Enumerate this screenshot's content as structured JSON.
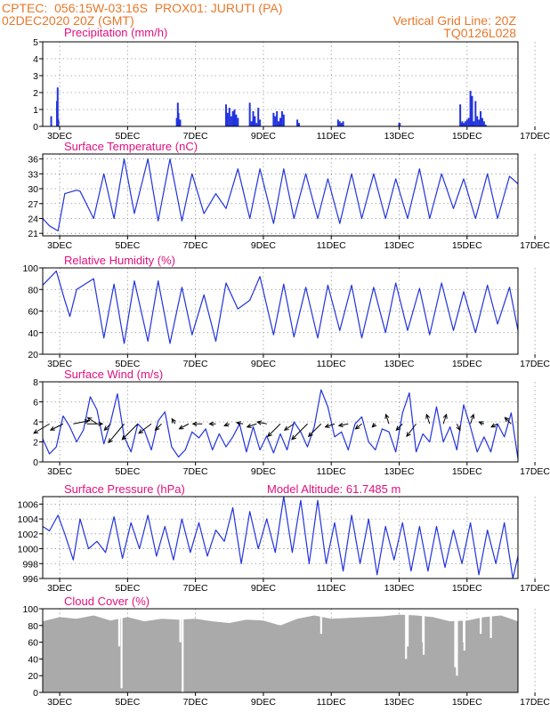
{
  "header": {
    "line1_left": "CPTEC:  056:15W-03:16S  PROX01: JURUTI (PA)",
    "line2_left": "02DEC2020 20Z (GMT)",
    "line2_right": "Vertical Grid Line: 20Z",
    "line3_right": "TQ0126L028"
  },
  "x_ticks": [
    "3DEC",
    "5DEC",
    "7DEC",
    "9DEC",
    "11DEC",
    "13DEC",
    "15DEC",
    "17DEC"
  ],
  "colors": {
    "line": "#2233dd",
    "title": "#e0107e",
    "header": "#e8782a",
    "cloud": "#aaaaaa",
    "arrow": "#000000"
  },
  "chart_data": [
    {
      "id": "precip",
      "type": "bar",
      "title": "Precipitation (mm/h)",
      "ylim": [
        0,
        5
      ],
      "yticks": [
        "0",
        "1",
        "2",
        "3",
        "4",
        "5"
      ],
      "x_unit": "days since 02DEC2020 20Z",
      "x": [
        0.25,
        0.42,
        0.44,
        0.46,
        3.95,
        3.98,
        4.0,
        4.02,
        4.05,
        5.4,
        5.45,
        5.5,
        5.55,
        5.6,
        5.65,
        5.7,
        5.75,
        6.1,
        6.15,
        6.2,
        6.25,
        6.3,
        6.35,
        6.4,
        6.8,
        6.85,
        6.9,
        6.95,
        7.0,
        7.05,
        7.1,
        7.5,
        7.55,
        8.7,
        8.75,
        8.8,
        8.85,
        10.5,
        10.52,
        12.3,
        12.33,
        12.36,
        12.4,
        12.45,
        12.5,
        12.55,
        12.6,
        12.65,
        12.7,
        12.75,
        12.8,
        12.85,
        12.9,
        12.95,
        13.0,
        13.05
      ],
      "values": [
        0.6,
        1.5,
        2.3,
        0.4,
        0.5,
        1.4,
        0.8,
        0.3,
        0.4,
        1.3,
        0.8,
        1.1,
        0.6,
        0.9,
        1.0,
        0.7,
        0.5,
        1.4,
        0.3,
        0.9,
        0.6,
        0.2,
        1.1,
        0.4,
        0.8,
        0.6,
        0.9,
        0.3,
        0.5,
        0.9,
        0.7,
        0.4,
        0.2,
        0.4,
        0.3,
        0.2,
        0.3,
        0.2,
        0.2,
        1.3,
        0.2,
        0.3,
        0.2,
        0.3,
        0.4,
        0.5,
        2.1,
        1.8,
        0.3,
        1.5,
        0.6,
        0.4,
        0.9,
        0.5,
        0.3,
        0.1
      ]
    },
    {
      "id": "temp",
      "type": "line",
      "title": "Surface Temperature (nC)",
      "ylim": [
        20.5,
        37
      ],
      "yticks": [
        "21",
        "24",
        "27",
        "30",
        "33",
        "36"
      ],
      "x_unit": "days since 02DEC2020 20Z",
      "x": [
        0,
        0.2,
        0.45,
        0.65,
        1.0,
        1.1,
        1.5,
        1.8,
        2.1,
        2.4,
        2.7,
        3.1,
        3.4,
        3.75,
        4.1,
        4.4,
        4.75,
        5.1,
        5.4,
        5.75,
        6.1,
        6.4,
        6.8,
        7.1,
        7.4,
        7.75,
        8.1,
        8.4,
        8.75,
        9.1,
        9.4,
        9.75,
        10.1,
        10.4,
        10.75,
        11.1,
        11.4,
        11.75,
        12.1,
        12.4,
        12.75,
        13.1,
        13.4,
        13.75,
        14
      ],
      "values": [
        24,
        22.5,
        21.5,
        29,
        29.7,
        29.5,
        24,
        33,
        24,
        36,
        25,
        36,
        23.5,
        36,
        23.5,
        33,
        25,
        29,
        26,
        34,
        24,
        34,
        23,
        34,
        24,
        33,
        24,
        32,
        23,
        33,
        24,
        33,
        24,
        32,
        24,
        34,
        24,
        33,
        26,
        32,
        24,
        33,
        24,
        32.5,
        31
      ]
    },
    {
      "id": "rh",
      "type": "line",
      "title": "Relative Humidity (%)",
      "ylim": [
        20,
        100
      ],
      "yticks": [
        "20",
        "40",
        "60",
        "80",
        "100"
      ],
      "x_unit": "days since 02DEC2020 20Z",
      "x": [
        0,
        0.4,
        0.65,
        0.8,
        1.0,
        1.5,
        1.8,
        2.1,
        2.4,
        2.7,
        3.1,
        3.4,
        3.75,
        4.1,
        4.4,
        4.75,
        5.1,
        5.4,
        5.75,
        6.1,
        6.4,
        6.8,
        7.1,
        7.4,
        7.75,
        8.1,
        8.4,
        8.75,
        9.1,
        9.4,
        9.75,
        10.1,
        10.4,
        10.75,
        11.1,
        11.4,
        11.75,
        12.1,
        12.4,
        12.75,
        13.1,
        13.4,
        13.75,
        14
      ],
      "values": [
        84,
        97,
        70,
        55,
        80,
        90,
        35,
        85,
        30,
        88,
        32,
        88,
        30,
        82,
        38,
        75,
        32,
        86,
        62,
        70,
        92,
        38,
        85,
        36,
        82,
        35,
        84,
        42,
        84,
        35,
        82,
        40,
        86,
        42,
        81,
        38,
        86,
        42,
        78,
        40,
        84,
        48,
        82,
        42
      ]
    },
    {
      "id": "wind",
      "type": "line",
      "title": "Surface Wind (m/s)",
      "ylim": [
        0,
        8
      ],
      "yticks": [
        "0",
        "2",
        "4",
        "6",
        "8"
      ],
      "x_unit": "days since 02DEC2020 20Z",
      "x": [
        0,
        0.2,
        0.4,
        0.6,
        0.8,
        1.0,
        1.2,
        1.4,
        1.6,
        1.8,
        2.0,
        2.2,
        2.4,
        2.6,
        2.8,
        3.0,
        3.2,
        3.4,
        3.6,
        3.8,
        4.0,
        4.2,
        4.4,
        4.6,
        4.8,
        5.0,
        5.2,
        5.4,
        5.6,
        5.8,
        6.0,
        6.2,
        6.4,
        6.6,
        6.8,
        7.0,
        7.2,
        7.4,
        7.6,
        7.8,
        8.0,
        8.2,
        8.4,
        8.6,
        8.8,
        9.0,
        9.2,
        9.4,
        9.6,
        9.8,
        10.0,
        10.2,
        10.4,
        10.6,
        10.8,
        11.0,
        11.2,
        11.4,
        11.6,
        11.8,
        12.0,
        12.2,
        12.4,
        12.6,
        12.8,
        13.0,
        13.2,
        13.4,
        13.6,
        13.8,
        14.0
      ],
      "values": [
        2.3,
        0.8,
        1.5,
        4.6,
        3.5,
        2.0,
        3.2,
        6.5,
        5.2,
        1.8,
        4.0,
        6.8,
        2.5,
        1.0,
        3.8,
        3.1,
        1.2,
        4.1,
        5.0,
        1.5,
        0.5,
        1.2,
        3.0,
        2.4,
        3.3,
        1.2,
        2.8,
        1.5,
        2.5,
        3.8,
        1.0,
        3.5,
        1.2,
        2.6,
        0.9,
        2.8,
        1.2,
        4.0,
        3.0,
        1.5,
        3.5,
        7.2,
        5.5,
        2.5,
        3.0,
        1.2,
        3.8,
        4.5,
        2.0,
        1.2,
        3.3,
        3.0,
        1.0,
        4.9,
        6.9,
        1.0,
        2.8,
        2.0,
        5.5,
        2.0,
        3.5,
        1.2,
        5.7,
        3.5,
        1.0,
        2.5,
        1.0,
        3.8,
        2.5,
        4.9,
        0.3
      ],
      "arrows": {
        "x": [
          0.2,
          0.6,
          0.9,
          1.3,
          1.6,
          2.0,
          2.4,
          2.8,
          3.2,
          3.5,
          3.9,
          4.3,
          4.7,
          5.1,
          5.5,
          5.9,
          6.3,
          6.6,
          7.0,
          7.4,
          7.8,
          8.2,
          8.6,
          9.0,
          9.4,
          9.8,
          10.2,
          10.6,
          11.0,
          11.4,
          11.8,
          12.2,
          12.6,
          13.0,
          13.4,
          13.8
        ],
        "u": [
          -2.5,
          -2.0,
          2.5,
          2.5,
          -1.5,
          -1.0,
          -2.5,
          -2.5,
          -2.0,
          -1.0,
          -0.5,
          -1.5,
          -1.5,
          -1.0,
          -0.8,
          -1.0,
          -1.5,
          -1.5,
          -2.0,
          -1.5,
          -2.5,
          -2.0,
          -1.5,
          -1.5,
          -1.0,
          -0.5,
          -0.5,
          -1.0,
          -1.5,
          -0.5,
          0.5,
          0.5,
          0.5,
          -0.8,
          -1.0,
          -1.0
        ],
        "v": [
          -1.5,
          -1.0,
          0.5,
          0.0,
          1.0,
          -1.0,
          -3.0,
          -2.5,
          -1.5,
          -1.0,
          0.8,
          -0.8,
          0.0,
          0.0,
          -0.3,
          0.2,
          -0.5,
          0.3,
          -2.0,
          -1.0,
          -2.5,
          -2.0,
          -0.5,
          -0.3,
          -0.8,
          -0.5,
          1.5,
          -1.0,
          -2.0,
          1.5,
          1.5,
          -1.0,
          1.5,
          0.3,
          -0.5,
          1.0
        ]
      }
    },
    {
      "id": "pres",
      "type": "line",
      "title": "Surface Pressure (hPa)",
      "annotation": "Model Altitude: 61.7485 m",
      "ylim": [
        996,
        1007
      ],
      "yticks": [
        "996",
        "998",
        "1000",
        "1002",
        "1004",
        "1006"
      ],
      "x_unit": "days since 02DEC2020 20Z",
      "x": [
        0,
        0.2,
        0.45,
        0.65,
        0.9,
        1.1,
        1.35,
        1.6,
        1.85,
        2.1,
        2.35,
        2.6,
        2.85,
        3.1,
        3.35,
        3.6,
        3.85,
        4.1,
        4.35,
        4.6,
        4.85,
        5.1,
        5.35,
        5.6,
        5.85,
        6.1,
        6.35,
        6.6,
        6.85,
        7.1,
        7.35,
        7.6,
        7.85,
        8.1,
        8.35,
        8.6,
        8.85,
        9.1,
        9.35,
        9.6,
        9.85,
        10.1,
        10.35,
        10.6,
        10.85,
        11.1,
        11.35,
        11.6,
        11.85,
        12.1,
        12.35,
        12.6,
        12.85,
        13.1,
        13.35,
        13.6,
        13.85,
        14
      ],
      "values": [
        1003,
        1002.4,
        1004.5,
        1002,
        998.5,
        1004,
        1000,
        1001,
        999.5,
        1004.3,
        998.7,
        1003.5,
        1000,
        1004.5,
        999,
        1003,
        998.5,
        1004,
        999.5,
        1003.5,
        999,
        1002.5,
        1001,
        1005.5,
        998,
        1005,
        1000,
        1004,
        999.5,
        1007,
        999.5,
        1006.5,
        998,
        1006.5,
        998,
        1003.5,
        997,
        1004.5,
        998,
        1004,
        996.5,
        1003,
        998.5,
        1003.5,
        997,
        1003,
        997,
        1003,
        997.5,
        1002.5,
        998,
        1003.5,
        996.5,
        1002.5,
        998,
        1003.5,
        996,
        999
      ]
    },
    {
      "id": "cloud",
      "type": "area",
      "title": "Cloud Cover (%)",
      "ylim": [
        0,
        100
      ],
      "yticks": [
        "0",
        "20",
        "40",
        "60",
        "80",
        "100"
      ],
      "x_unit": "days since 02DEC2020 20Z",
      "x": [
        0,
        0.5,
        1.0,
        1.5,
        2.0,
        2.5,
        3.0,
        3.5,
        4.0,
        4.5,
        5.0,
        5.5,
        6.0,
        6.5,
        7.0,
        7.5,
        8.0,
        8.5,
        9.0,
        9.5,
        10.0,
        10.5,
        11.0,
        11.5,
        12.0,
        12.5,
        13.0,
        13.5,
        14.0
      ],
      "values": [
        85,
        90,
        88,
        92,
        86,
        90,
        85,
        88,
        87,
        88,
        85,
        83,
        87,
        86,
        80,
        88,
        92,
        88,
        89,
        90,
        91,
        93,
        92,
        90,
        85,
        86,
        90,
        92,
        85
      ],
      "dips": {
        "x": [
          2.25,
          2.32,
          4.05,
          4.12,
          8.2,
          10.7,
          10.75,
          11.2,
          11.22,
          12.15,
          12.2,
          12.4,
          12.42,
          12.9,
          13.2
        ],
        "values": [
          55,
          5,
          60,
          0,
          70,
          40,
          55,
          60,
          45,
          30,
          20,
          60,
          50,
          70,
          65
        ]
      }
    }
  ]
}
